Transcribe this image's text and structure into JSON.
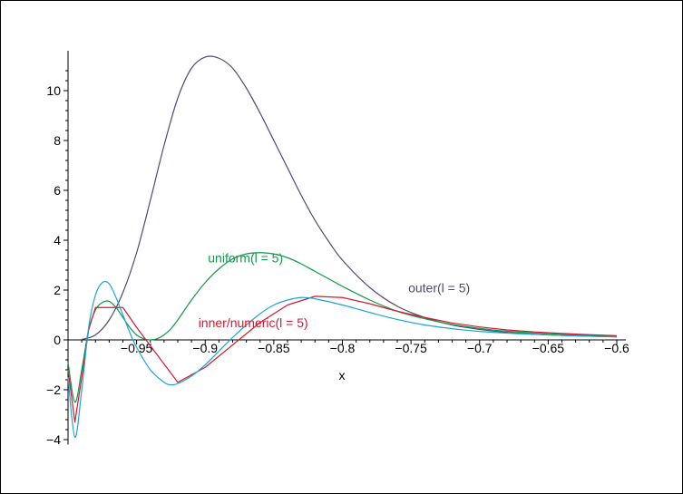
{
  "chart_data": {
    "type": "line",
    "title": "",
    "xlabel": "x",
    "ylabel": "",
    "xlim": [
      -1.0,
      -0.6
    ],
    "ylim": [
      -4.2,
      11.6
    ],
    "grid": false,
    "xticks": [
      -0.95,
      -0.9,
      -0.85,
      -0.8,
      -0.75,
      -0.7,
      -0.65,
      -0.6
    ],
    "xtick_labels": [
      "−0.95",
      "−0.9",
      "−0.85",
      "−0.8",
      "−0.75",
      "−0.7",
      "−0.65",
      "−0.6"
    ],
    "yticks": [
      -4,
      -2,
      0,
      2,
      4,
      6,
      8,
      10
    ],
    "ytick_labels": [
      "−4",
      "−2",
      "0",
      "2",
      "4",
      "6",
      "8",
      "10"
    ],
    "series": [
      {
        "name": "outer(l = 5)",
        "color": "#4e4a74",
        "label_at": [
          -0.752,
          2.1
        ],
        "x": [
          -0.99,
          -0.98,
          -0.97,
          -0.96,
          -0.95,
          -0.94,
          -0.93,
          -0.92,
          -0.91,
          -0.9,
          -0.89,
          -0.88,
          -0.87,
          -0.86,
          -0.85,
          -0.84,
          -0.83,
          -0.82,
          -0.81,
          -0.8,
          -0.78,
          -0.76,
          -0.74,
          -0.72,
          -0.7,
          -0.68,
          -0.66,
          -0.64,
          -0.62,
          -0.6
        ],
        "y": [
          0.02,
          0.2,
          0.8,
          1.9,
          3.5,
          5.6,
          7.8,
          9.7,
          10.9,
          11.35,
          11.3,
          10.9,
          10.1,
          9.1,
          8.0,
          6.9,
          5.8,
          4.8,
          3.95,
          3.2,
          2.1,
          1.35,
          0.9,
          0.6,
          0.42,
          0.3,
          0.23,
          0.18,
          0.15,
          0.12
        ]
      },
      {
        "name": "uniform(l = 5)",
        "color": "#0f9a4a",
        "label_at": [
          -0.898,
          3.3
        ],
        "x": [
          -1.0,
          -0.995,
          -0.99,
          -0.985,
          -0.98,
          -0.975,
          -0.97,
          -0.965,
          -0.96,
          -0.955,
          -0.95,
          -0.945,
          -0.94,
          -0.935,
          -0.93,
          -0.925,
          -0.92,
          -0.91,
          -0.9,
          -0.89,
          -0.88,
          -0.87,
          -0.86,
          -0.85,
          -0.84,
          -0.83,
          -0.82,
          -0.81,
          -0.8,
          -0.78,
          -0.76,
          -0.74,
          -0.72,
          -0.7,
          -0.68,
          -0.66,
          -0.64,
          -0.62,
          -0.6
        ],
        "y": [
          -0.9,
          -2.5,
          -1.2,
          0.4,
          1.2,
          1.5,
          1.55,
          1.3,
          0.9,
          0.5,
          0.2,
          0.05,
          0.0,
          0.05,
          0.2,
          0.45,
          0.8,
          1.6,
          2.3,
          2.85,
          3.25,
          3.45,
          3.5,
          3.45,
          3.3,
          3.05,
          2.75,
          2.45,
          2.15,
          1.6,
          1.15,
          0.85,
          0.62,
          0.46,
          0.35,
          0.28,
          0.22,
          0.18,
          0.15
        ]
      },
      {
        "name": "inner/numeric(l = 5)",
        "color": "#d41a2f",
        "label_at": [
          -0.905,
          0.7
        ],
        "x": [
          -1.0,
          -0.995,
          -0.99,
          -0.985,
          -0.98,
          -0.975,
          -0.97,
          -0.965,
          -0.96,
          -0.95,
          -0.92,
          -0.9,
          -0.88,
          -0.86,
          -0.84,
          -0.82,
          -0.8,
          -0.78,
          -0.76,
          -0.74,
          -0.72,
          -0.7,
          -0.68,
          -0.66,
          -0.64,
          -0.62,
          -0.6
        ],
        "y": [
          -1.2,
          -3.3,
          -1.5,
          0.4,
          1.3,
          1.3,
          1.3,
          1.3,
          1.3,
          0.5,
          -1.7,
          -1.1,
          -0.2,
          0.7,
          1.4,
          1.75,
          1.7,
          1.45,
          1.15,
          0.9,
          0.68,
          0.52,
          0.4,
          0.32,
          0.26,
          0.21,
          0.17
        ]
      },
      {
        "name": "",
        "color": "#1aa4d8",
        "x": [
          -1.0,
          -0.995,
          -0.99,
          -0.985,
          -0.98,
          -0.975,
          -0.97,
          -0.965,
          -0.96,
          -0.955,
          -0.95,
          -0.94,
          -0.93,
          -0.925,
          -0.92,
          -0.91,
          -0.9,
          -0.89,
          -0.88,
          -0.87,
          -0.86,
          -0.85,
          -0.84,
          -0.83,
          -0.82,
          -0.8,
          -0.78,
          -0.76,
          -0.74,
          -0.72,
          -0.7,
          -0.68,
          -0.66,
          -0.64,
          -0.62,
          -0.6
        ],
        "y": [
          -1.5,
          -3.9,
          -2.0,
          0.5,
          1.8,
          2.3,
          2.25,
          1.7,
          1.0,
          0.3,
          -0.3,
          -1.2,
          -1.7,
          -1.8,
          -1.75,
          -1.45,
          -1.0,
          -0.45,
          0.1,
          0.6,
          1.05,
          1.4,
          1.6,
          1.7,
          1.65,
          1.4,
          1.1,
          0.82,
          0.6,
          0.45,
          0.34,
          0.27,
          0.22,
          0.18,
          0.15,
          0.12
        ]
      }
    ]
  }
}
